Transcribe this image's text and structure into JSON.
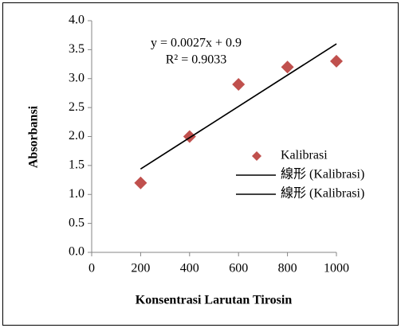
{
  "chart_data": {
    "type": "scatter",
    "xlabel": "Konsentrasi Larutan Tirosin",
    "ylabel": "Absorbansi",
    "annotations": [
      "y = 0.0027x + 0.9",
      "R² = 0.9033"
    ],
    "xlim": [
      0,
      1000
    ],
    "xticks": [
      0,
      200,
      400,
      600,
      800,
      1000
    ],
    "ylim": [
      0,
      4
    ],
    "yticks": [
      {
        "value": 0,
        "label": "0.0"
      },
      {
        "value": 0.5,
        "label": "0.5"
      },
      {
        "value": 1,
        "label": "1.0"
      },
      {
        "value": 1.5,
        "label": "1.5"
      },
      {
        "value": 2,
        "label": "2.0"
      },
      {
        "value": 2.5,
        "label": "2.5"
      },
      {
        "value": 3,
        "label": "3.0"
      },
      {
        "value": 3.5,
        "label": "3.5"
      },
      {
        "value": 4,
        "label": "4.0"
      }
    ],
    "grid": false,
    "legend": "right",
    "series": [
      {
        "name": "Kalibrasi",
        "color": "#c0504d",
        "mode": "markers",
        "x": [
          200,
          400,
          600,
          800,
          1000
        ],
        "values": [
          1.2,
          2.0,
          2.9,
          3.2,
          3.3
        ]
      },
      {
        "name": "線形 (Kalibrasi)",
        "color": "#000000",
        "mode": "line",
        "x": [
          200,
          1000
        ],
        "values": [
          1.44,
          3.6
        ]
      },
      {
        "name": "線形 (Kalibrasi)",
        "color": "#000000",
        "mode": "line",
        "x": [
          200,
          1000
        ],
        "values": [
          1.44,
          3.6
        ]
      }
    ]
  }
}
